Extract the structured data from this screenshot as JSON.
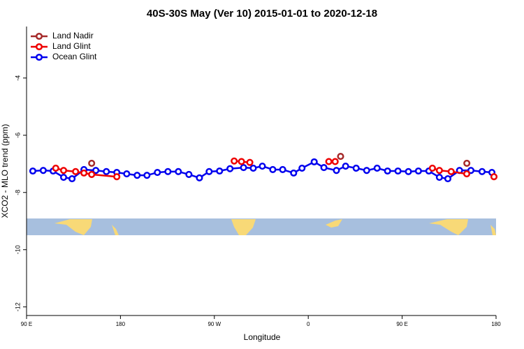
{
  "chart_data": {
    "type": "line",
    "title": "40S-30S May (Ver 10)   2015-01-01 to 2020-12-18",
    "x_label": "Longitude",
    "y_label": "XCO2 - MLO trend (ppm)",
    "xlim": [
      90,
      540
    ],
    "ylim": [
      -12.3,
      -2.2
    ],
    "xticks": [
      {
        "value": 90,
        "label": "90 E"
      },
      {
        "value": 180,
        "label": "180"
      },
      {
        "value": 270,
        "label": "90 W"
      },
      {
        "value": 360,
        "label": "0"
      },
      {
        "value": 450,
        "label": "90 E"
      },
      {
        "value": 540,
        "label": "180"
      }
    ],
    "yticks": [
      -12,
      -10,
      -8,
      -6,
      -4
    ],
    "legend": "top-left",
    "series": [
      {
        "name": "Land Nadir",
        "color": "#a52a2a",
        "x": [
          152.4,
          null,
          391,
          null,
          512
        ],
        "values": [
          -6.98,
          null,
          -6.74,
          null,
          -6.98
        ]
      },
      {
        "name": "Land Glint",
        "color": "#ee0000",
        "x": [
          118,
          125.5,
          137,
          145,
          152.4,
          176.5,
          null,
          289,
          296,
          304,
          null,
          379.7,
          385.8,
          null,
          479,
          485.7,
          497,
          511.9,
          null,
          538
        ],
        "values": [
          -7.15,
          -7.23,
          -7.27,
          -7.32,
          -7.37,
          -7.45,
          null,
          -6.9,
          -6.92,
          -6.95,
          null,
          -6.92,
          -6.92,
          null,
          -7.15,
          -7.23,
          -7.27,
          -7.35,
          null,
          -7.45
        ]
      },
      {
        "name": "Ocean Glint",
        "color": "#0000ee",
        "x": [
          96,
          106,
          115.5,
          125.5,
          133.6,
          145,
          156.4,
          166.5,
          176.5,
          186,
          196,
          205.4,
          215.4,
          225.5,
          235.5,
          245.6,
          255.7,
          265,
          275,
          285,
          298,
          307.3,
          316,
          326,
          335.5,
          346,
          354,
          365.7,
          375,
          387,
          395.8,
          405.9,
          416,
          426,
          436,
          446,
          456,
          465.6,
          475.6,
          485.7,
          493.8,
          505,
          515.9,
          526.6,
          536
        ],
        "values": [
          -7.25,
          -7.23,
          -7.25,
          -7.47,
          -7.52,
          -7.2,
          -7.23,
          -7.27,
          -7.3,
          -7.35,
          -7.4,
          -7.4,
          -7.3,
          -7.27,
          -7.27,
          -7.37,
          -7.49,
          -7.27,
          -7.25,
          -7.17,
          -7.13,
          -7.15,
          -7.08,
          -7.2,
          -7.2,
          -7.32,
          -7.15,
          -6.93,
          -7.13,
          -7.23,
          -7.08,
          -7.15,
          -7.23,
          -7.15,
          -7.25,
          -7.25,
          -7.27,
          -7.25,
          -7.25,
          -7.47,
          -7.52,
          -7.23,
          -7.23,
          -7.27,
          -7.3
        ]
      }
    ]
  }
}
